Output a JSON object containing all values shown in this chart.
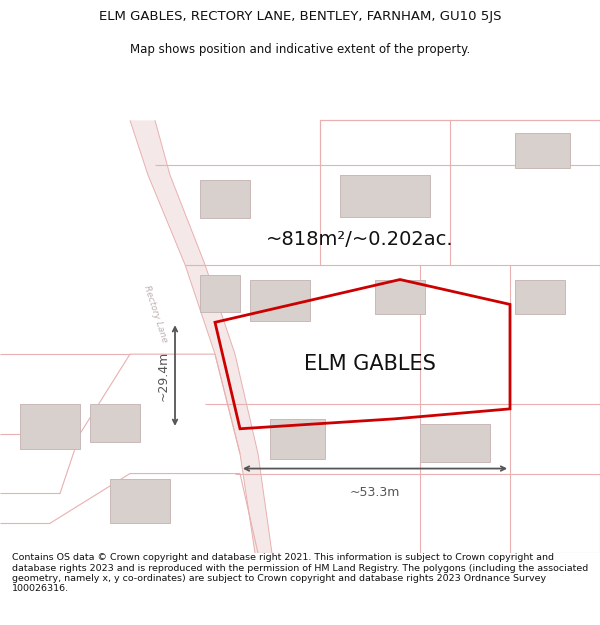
{
  "title_line1": "ELM GABLES, RECTORY LANE, BENTLEY, FARNHAM, GU10 5JS",
  "title_line2": "Map shows position and indicative extent of the property.",
  "property_label": "ELM GABLES",
  "area_label": "~818m²/~0.202ac.",
  "width_label": "~53.3m",
  "height_label": "~29.4m",
  "footer_text": "Contains OS data © Crown copyright and database right 2021. This information is subject to Crown copyright and database rights 2023 and is reproduced with the permission of HM Land Registry. The polygons (including the associated geometry, namely x, y co-ordinates) are subject to Crown copyright and database rights 2023 Ordnance Survey 100026316.",
  "bg_color": "#ffffff",
  "map_bg_color": "#ffffff",
  "road_fill_color": "#f5e8e8",
  "road_line_color": "#e8b0b0",
  "plot_line_color": "#e8b0b0",
  "building_fill_color": "#d8d0cc",
  "building_edge_color": "#c8b8b8",
  "property_color": "#cc0000",
  "dim_color": "#555555",
  "road_text_color": "#c0b0b0",
  "title_color": "#111111",
  "footer_color": "#111111",
  "title_fontsize": 9.5,
  "subtitle_fontsize": 8.5,
  "area_fontsize": 14,
  "label_fontsize": 15,
  "dim_fontsize": 9,
  "footer_fontsize": 6.8
}
